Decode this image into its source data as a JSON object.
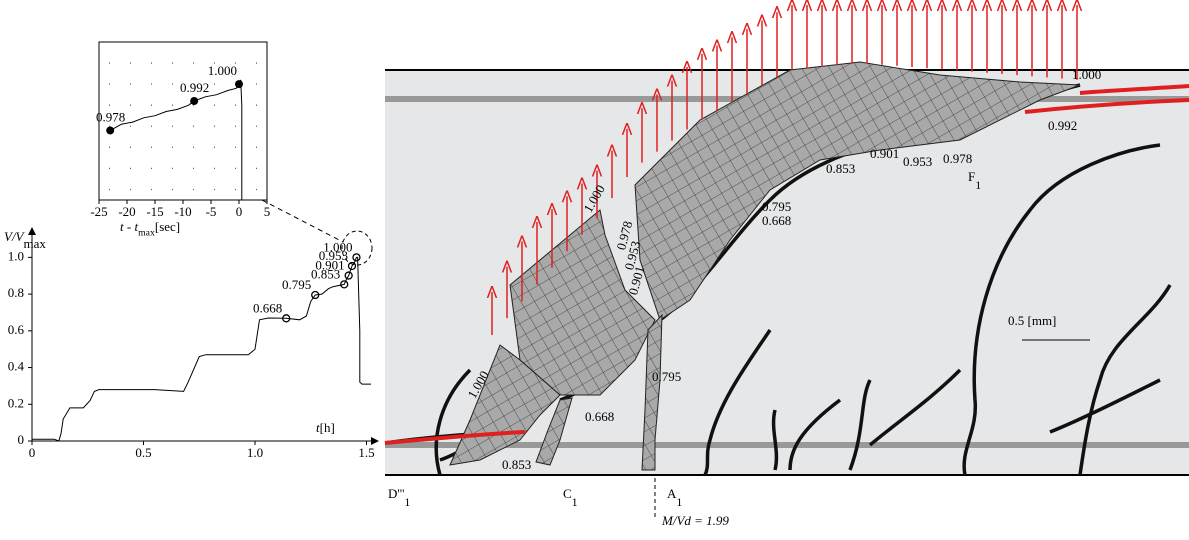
{
  "chart_data": [
    {
      "type": "line",
      "y_label": {
        "text": "V/V",
        "sub": "max"
      },
      "x_label": {
        "text": "t",
        "unit": "[h]"
      },
      "xlim": [
        0,
        1.55
      ],
      "ylim": [
        0,
        1.1
      ],
      "xticks": [
        0,
        0.5,
        {
          "value": 1,
          "label": "1.0"
        },
        1.5
      ],
      "yticks": [
        0,
        0.2,
        0.4,
        0.6,
        0.8,
        {
          "value": 1,
          "label": "1.0"
        }
      ],
      "series": [
        {
          "color": "#000000",
          "x": [
            0,
            0.05,
            0.1,
            0.12,
            0.13,
            0.14,
            0.17,
            0.23,
            0.26,
            0.28,
            0.3,
            0.55,
            0.68,
            0.7,
            0.75,
            0.78,
            0.97,
            1.0,
            1.02,
            1.06,
            1.14,
            1.2,
            1.23,
            1.25,
            1.27,
            1.3,
            1.33,
            1.35,
            1.37,
            1.4,
            1.41,
            1.42,
            1.435,
            1.445,
            1.455,
            1.46,
            1.47,
            1.47,
            1.48,
            1.52
          ],
          "values": [
            0.01,
            0.01,
            0.01,
            0.0,
            0.04,
            0.12,
            0.18,
            0.18,
            0.22,
            0.27,
            0.28,
            0.28,
            0.27,
            0.32,
            0.46,
            0.47,
            0.47,
            0.5,
            0.66,
            0.67,
            0.668,
            0.66,
            0.68,
            0.76,
            0.795,
            0.8,
            0.83,
            0.84,
            0.845,
            0.853,
            0.88,
            0.901,
            0.953,
            0.97,
            1.0,
            1.0,
            0.6,
            0.32,
            0.31,
            0.31
          ]
        }
      ],
      "markers": {
        "x": [
          1.14,
          1.27,
          1.4,
          1.42,
          1.435,
          1.455
        ],
        "values": [
          0.668,
          0.795,
          0.853,
          0.901,
          0.953,
          1.0
        ],
        "value_labels": [
          "0.668",
          "0.795",
          "0.853",
          "0.901",
          "0.953",
          "1.000"
        ]
      }
    },
    {
      "type": "line",
      "x_label": {
        "text": "t - t",
        "sub": "max",
        "unit": "[sec]"
      },
      "xlim": [
        -25,
        5
      ],
      "ylim": [
        0.945,
        1.02
      ],
      "xticks": [
        -25,
        -20,
        -15,
        -10,
        -5,
        0,
        5
      ],
      "ygrid": [
        0.95,
        0.96,
        0.97,
        0.98,
        0.99,
        1.0,
        1.01
      ],
      "series": [
        {
          "color": "#000000",
          "x": [
            -23,
            -21,
            -19,
            -17,
            -15,
            -13,
            -11,
            -9,
            -8,
            -6,
            -4,
            -2,
            -0.5,
            0,
            0.3,
            0.5,
            0.5
          ],
          "values": [
            0.978,
            0.981,
            0.982,
            0.984,
            0.985,
            0.987,
            0.988,
            0.99,
            0.992,
            0.994,
            0.995,
            0.997,
            0.998,
            1.0,
            1.002,
            0.99,
            0.945
          ]
        }
      ],
      "markers": {
        "x": [
          -23,
          -8,
          0
        ],
        "values": [
          0.978,
          0.992,
          1.0
        ],
        "value_labels": [
          "0.978",
          "0.992",
          "1.000"
        ]
      }
    }
  ],
  "diagram": {
    "labels": [
      {
        "text": "1.000"
      },
      {
        "text": "0.992"
      },
      {
        "text": "0.978"
      },
      {
        "text": "0.953"
      },
      {
        "text": "0.901"
      },
      {
        "text": "0.853"
      },
      {
        "text": "0.795"
      },
      {
        "text": "0.668"
      },
      {
        "text": "F",
        "sub": "1"
      },
      {
        "text": "1.000"
      },
      {
        "text": "0.978"
      },
      {
        "text": "0.953"
      },
      {
        "text": "0.901"
      },
      {
        "text": "0.795"
      },
      {
        "text": "0.668"
      },
      {
        "text": "0.853"
      },
      {
        "text": "1.000"
      },
      {
        "text": "D'''",
        "sub": "1"
      },
      {
        "text": "C",
        "sub": "1"
      },
      {
        "text": "A",
        "sub": "1"
      },
      {
        "text": "M/Vd = 1.99"
      },
      {
        "text": "0.5 [mm]"
      }
    ]
  }
}
